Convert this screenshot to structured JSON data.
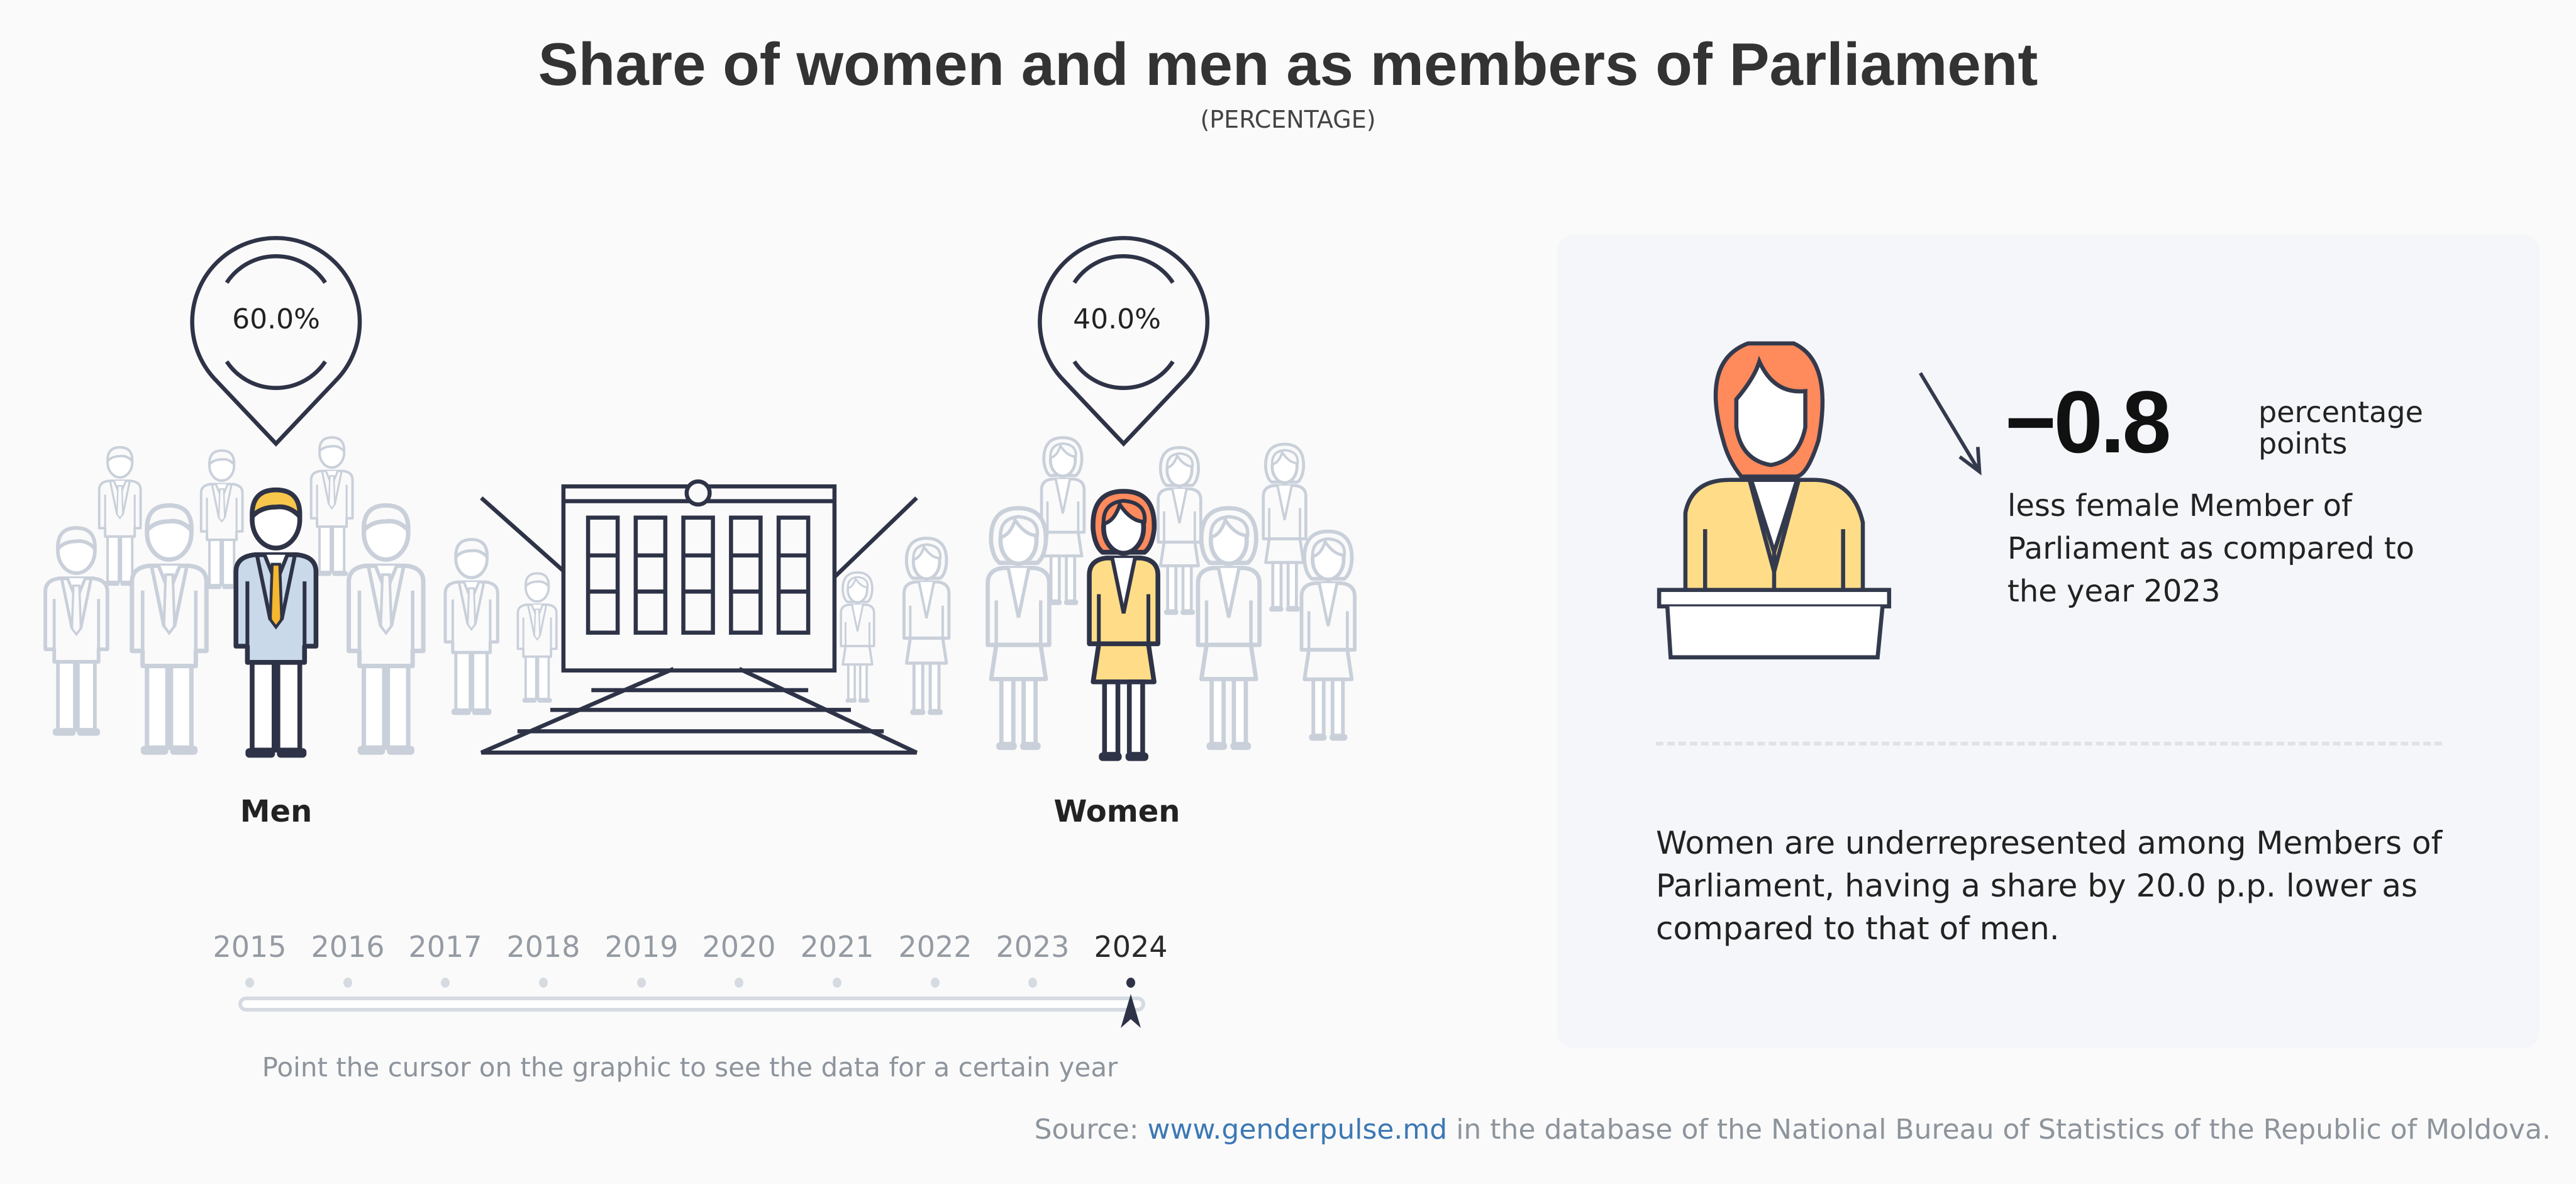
{
  "title": "Share of women and men as members of Parliament",
  "subtitle": "(PERCENTAGE)",
  "groups": {
    "men": {
      "label": "Men",
      "value": "60.0%"
    },
    "women": {
      "label": "Women",
      "value": "40.0%"
    }
  },
  "panel": {
    "change_value": "−0.8",
    "change_unit": "percentage points",
    "change_text": "less female Member of Parliament as compared to the year 2023",
    "summary": "Women are underrepresented among Members of Parliament, having a share by 20.0 p.p. lower as compared to that of men.",
    "trend_icon": "arrow-down-right-icon"
  },
  "timeline": {
    "years": [
      "2015",
      "2016",
      "2017",
      "2018",
      "2019",
      "2020",
      "2021",
      "2022",
      "2023",
      "2024"
    ],
    "selected": "2024",
    "hint": "Point the cursor on the graphic to see the data for a certain year"
  },
  "source": {
    "prefix": "Source: ",
    "link": "www.genderpulse.md",
    "suffix": " in the database of the National Bureau of Statistics of the Republic of Moldova."
  },
  "colors": {
    "dark": "#2e3347",
    "men_suit": "#c9d9ea",
    "men_hair": "#f7c64a",
    "women_hair": "#ff8a5c",
    "women_suit": "#ffdd88",
    "inactive": "#c9d0da",
    "link": "#3c78b4"
  }
}
